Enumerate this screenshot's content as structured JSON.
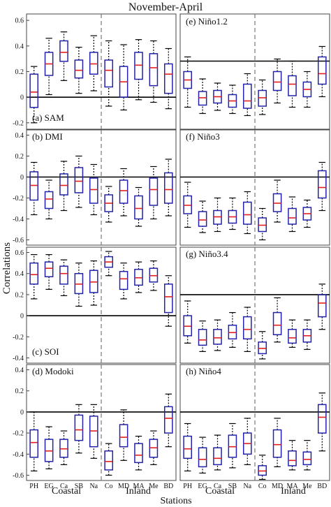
{
  "figure_title": "November-April",
  "ylabel": "Correlations",
  "xlabel": "Stations",
  "group_labels": [
    "Coastal",
    "Inland"
  ],
  "colors": {
    "box": "#2222aa",
    "median": "#e02020",
    "zero_line": "#000000",
    "divider": "#777777"
  },
  "chart_data": [
    {
      "type": "boxplot",
      "panel": "(a) SAM",
      "ylim": [
        -0.25,
        0.65
      ],
      "yticks": [
        -0.2,
        0,
        0.2,
        0.4,
        0.6
      ],
      "ytick_labels": [
        "-0.2",
        "0",
        "0.2",
        "0.4",
        "0.6"
      ],
      "categories": [
        "PH",
        "EG",
        "Ca",
        "SB",
        "Na",
        "Co",
        "MD",
        "MA",
        "Me",
        "BD"
      ],
      "boxes": [
        {
          "min": -0.2,
          "q1": -0.08,
          "median": 0.04,
          "q3": 0.18,
          "max": 0.24
        },
        {
          "min": 0.02,
          "q1": 0.17,
          "median": 0.26,
          "q3": 0.35,
          "max": 0.46
        },
        {
          "min": 0.13,
          "q1": 0.28,
          "median": 0.35,
          "q3": 0.44,
          "max": 0.51
        },
        {
          "min": 0.03,
          "q1": 0.15,
          "median": 0.21,
          "q3": 0.29,
          "max": 0.39
        },
        {
          "min": 0.05,
          "q1": 0.18,
          "median": 0.26,
          "q3": 0.35,
          "max": 0.48
        },
        {
          "min": -0.07,
          "q1": 0.08,
          "median": 0.21,
          "q3": 0.29,
          "max": 0.44
        },
        {
          "min": -0.1,
          "q1": 0.0,
          "median": 0.12,
          "q3": 0.24,
          "max": 0.41
        },
        {
          "min": -0.02,
          "q1": 0.14,
          "median": 0.25,
          "q3": 0.35,
          "max": 0.45
        },
        {
          "min": -0.04,
          "q1": 0.09,
          "median": 0.23,
          "q3": 0.34,
          "max": 0.44
        },
        {
          "min": -0.09,
          "q1": 0.03,
          "median": 0.18,
          "q3": 0.26,
          "max": 0.38
        }
      ]
    },
    {
      "type": "boxplot",
      "panel": "(e) Niño1.2",
      "ylim": [
        -0.65,
        0.45
      ],
      "yticks": [],
      "ytick_labels": [],
      "categories": [
        "PH",
        "EG",
        "Ca",
        "SB",
        "Na",
        "Co",
        "MD",
        "MA",
        "Me",
        "BD"
      ],
      "boxes": [
        {
          "min": -0.44,
          "q1": -0.26,
          "median": -0.18,
          "q3": -0.1,
          "max": 0.04
        },
        {
          "min": -0.5,
          "q1": -0.42,
          "median": -0.35,
          "q3": -0.29,
          "max": -0.17
        },
        {
          "min": -0.47,
          "q1": -0.4,
          "median": -0.34,
          "q3": -0.28,
          "max": -0.21
        },
        {
          "min": -0.5,
          "q1": -0.44,
          "median": -0.38,
          "q3": -0.32,
          "max": -0.23
        },
        {
          "min": -0.52,
          "q1": -0.45,
          "median": -0.38,
          "q3": -0.22,
          "max": -0.12
        },
        {
          "min": -0.51,
          "q1": -0.43,
          "median": -0.35,
          "q3": -0.28,
          "max": -0.18
        },
        {
          "min": -0.4,
          "q1": -0.28,
          "median": -0.2,
          "q3": -0.1,
          "max": 0.02
        },
        {
          "min": -0.44,
          "q1": -0.33,
          "median": -0.22,
          "q3": -0.14,
          "max": 0.0
        },
        {
          "min": -0.44,
          "q1": -0.34,
          "median": -0.27,
          "q3": -0.2,
          "max": -0.1
        },
        {
          "min": -0.34,
          "q1": -0.22,
          "median": -0.12,
          "q3": 0.04,
          "max": 0.14
        }
      ]
    },
    {
      "type": "boxplot",
      "panel": "(b) DMI",
      "ylim": [
        -0.65,
        0.45
      ],
      "yticks": [
        -0.6,
        -0.4,
        -0.2,
        0,
        0.2,
        0.4
      ],
      "ytick_labels": [
        "-0.6",
        "-0.4",
        "-0.2",
        "0",
        "0.2",
        "0.4"
      ],
      "categories": [
        "PH",
        "EG",
        "Ca",
        "SB",
        "Na",
        "Co",
        "MD",
        "MA",
        "Me",
        "BD"
      ],
      "boxes": [
        {
          "min": -0.36,
          "q1": -0.22,
          "median": -0.08,
          "q3": 0.05,
          "max": 0.14
        },
        {
          "min": -0.4,
          "q1": -0.3,
          "median": -0.21,
          "q3": -0.14,
          "max": -0.03
        },
        {
          "min": -0.32,
          "q1": -0.17,
          "median": -0.08,
          "q3": 0.03,
          "max": 0.15
        },
        {
          "min": -0.29,
          "q1": -0.15,
          "median": -0.04,
          "q3": 0.09,
          "max": 0.2
        },
        {
          "min": -0.36,
          "q1": -0.25,
          "median": -0.12,
          "q3": -0.01,
          "max": 0.12
        },
        {
          "min": -0.43,
          "q1": -0.33,
          "median": -0.25,
          "q3": -0.17,
          "max": -0.09
        },
        {
          "min": -0.37,
          "q1": -0.25,
          "median": -0.13,
          "q3": -0.03,
          "max": 0.08
        },
        {
          "min": -0.47,
          "q1": -0.4,
          "median": -0.3,
          "q3": -0.18,
          "max": -0.1
        },
        {
          "min": -0.4,
          "q1": -0.27,
          "median": -0.12,
          "q3": -0.01,
          "max": 0.1
        },
        {
          "min": -0.37,
          "q1": -0.25,
          "median": -0.12,
          "q3": 0.04,
          "max": 0.17
        }
      ]
    },
    {
      "type": "boxplot",
      "panel": "(f) Niño3",
      "ylim": [
        -0.65,
        0.45
      ],
      "yticks": [],
      "ytick_labels": [],
      "categories": [
        "PH",
        "EG",
        "Ca",
        "SB",
        "Na",
        "Co",
        "MD",
        "MA",
        "Me",
        "BD"
      ],
      "boxes": [
        {
          "min": -0.48,
          "q1": -0.35,
          "median": -0.27,
          "q3": -0.18,
          "max": -0.05
        },
        {
          "min": -0.53,
          "q1": -0.47,
          "median": -0.41,
          "q3": -0.33,
          "max": -0.23
        },
        {
          "min": -0.52,
          "q1": -0.45,
          "median": -0.38,
          "q3": -0.32,
          "max": -0.2
        },
        {
          "min": -0.5,
          "q1": -0.44,
          "median": -0.38,
          "q3": -0.32,
          "max": -0.2
        },
        {
          "min": -0.54,
          "q1": -0.45,
          "median": -0.36,
          "q3": -0.24,
          "max": -0.14
        },
        {
          "min": -0.6,
          "q1": -0.52,
          "median": -0.46,
          "q3": -0.39,
          "max": -0.3
        },
        {
          "min": -0.43,
          "q1": -0.33,
          "median": -0.25,
          "q3": -0.16,
          "max": -0.03
        },
        {
          "min": -0.52,
          "q1": -0.45,
          "median": -0.39,
          "q3": -0.3,
          "max": -0.19
        },
        {
          "min": -0.48,
          "q1": -0.41,
          "median": -0.35,
          "q3": -0.29,
          "max": -0.22
        },
        {
          "min": -0.32,
          "q1": -0.2,
          "median": -0.1,
          "q3": 0.06,
          "max": 0.14
        }
      ]
    },
    {
      "type": "boxplot",
      "panel": "(c) SOI",
      "ylim": [
        -0.45,
        0.65
      ],
      "yticks": [
        -0.4,
        -0.2,
        0,
        0.2,
        0.4,
        0.6
      ],
      "ytick_labels": [
        "-0.4",
        "-0.2",
        "0",
        "0.2",
        "0.4",
        "0.6"
      ],
      "categories": [
        "PH",
        "EG",
        "Ca",
        "SB",
        "Na",
        "Co",
        "MD",
        "MA",
        "Me",
        "BD"
      ],
      "boxes": [
        {
          "min": 0.16,
          "q1": 0.3,
          "median": 0.39,
          "q3": 0.5,
          "max": 0.58
        },
        {
          "min": 0.25,
          "q1": 0.37,
          "median": 0.45,
          "q3": 0.51,
          "max": 0.58
        },
        {
          "min": 0.19,
          "q1": 0.3,
          "median": 0.4,
          "q3": 0.47,
          "max": 0.53
        },
        {
          "min": 0.09,
          "q1": 0.21,
          "median": 0.3,
          "q3": 0.4,
          "max": 0.5
        },
        {
          "min": 0.1,
          "q1": 0.22,
          "median": 0.32,
          "q3": 0.43,
          "max": 0.52
        },
        {
          "min": 0.38,
          "q1": 0.46,
          "median": 0.51,
          "q3": 0.56,
          "max": 0.61
        },
        {
          "min": 0.16,
          "q1": 0.25,
          "median": 0.35,
          "q3": 0.42,
          "max": 0.5
        },
        {
          "min": 0.22,
          "q1": 0.29,
          "median": 0.36,
          "q3": 0.44,
          "max": 0.51
        },
        {
          "min": 0.24,
          "q1": 0.32,
          "median": 0.38,
          "q3": 0.45,
          "max": 0.52
        },
        {
          "min": -0.1,
          "q1": 0.03,
          "median": 0.18,
          "q3": 0.3,
          "max": 0.38
        }
      ]
    },
    {
      "type": "boxplot",
      "panel": "(g) Niño3.4",
      "ylim": [
        -0.65,
        0.45
      ],
      "yticks": [],
      "ytick_labels": [],
      "categories": [
        "PH",
        "EG",
        "Ca",
        "SB",
        "Na",
        "Co",
        "MD",
        "MA",
        "Me",
        "BD"
      ],
      "boxes": [
        {
          "min": -0.46,
          "q1": -0.39,
          "median": -0.3,
          "q3": -0.2,
          "max": -0.06
        },
        {
          "min": -0.54,
          "q1": -0.48,
          "median": -0.43,
          "q3": -0.33,
          "max": -0.25
        },
        {
          "min": -0.53,
          "q1": -0.47,
          "median": -0.41,
          "q3": -0.33,
          "max": -0.24
        },
        {
          "min": -0.5,
          "q1": -0.42,
          "median": -0.36,
          "q3": -0.29,
          "max": -0.17
        },
        {
          "min": -0.54,
          "q1": -0.42,
          "median": -0.33,
          "q3": -0.21,
          "max": -0.12
        },
        {
          "min": -0.61,
          "q1": -0.56,
          "median": -0.51,
          "q3": -0.45,
          "max": -0.35
        },
        {
          "min": -0.45,
          "q1": -0.38,
          "median": -0.29,
          "q3": -0.17,
          "max": -0.03
        },
        {
          "min": -0.5,
          "q1": -0.46,
          "median": -0.41,
          "q3": -0.33,
          "max": -0.24
        },
        {
          "min": -0.52,
          "q1": -0.45,
          "median": -0.39,
          "q3": -0.33,
          "max": -0.24
        },
        {
          "min": -0.33,
          "q1": -0.21,
          "median": -0.08,
          "q3": 0.0,
          "max": 0.1
        }
      ]
    },
    {
      "type": "boxplot",
      "panel": "(d) Modoki",
      "ylim": [
        -0.65,
        0.45
      ],
      "yticks": [
        -0.6,
        -0.4,
        -0.2,
        0,
        0.2,
        0.4
      ],
      "ytick_labels": [
        "-0.6",
        "-0.4",
        "-0.2",
        "0",
        "0.2",
        "0.4"
      ],
      "categories": [
        "PH",
        "EG",
        "Ca",
        "SB",
        "Na",
        "Co",
        "MD",
        "MA",
        "Me",
        "BD"
      ],
      "boxes": [
        {
          "min": -0.56,
          "q1": -0.43,
          "median": -0.29,
          "q3": -0.17,
          "max": 0.0
        },
        {
          "min": -0.54,
          "q1": -0.47,
          "median": -0.37,
          "q3": -0.26,
          "max": -0.14
        },
        {
          "min": -0.5,
          "q1": -0.43,
          "median": -0.35,
          "q3": -0.26,
          "max": -0.18
        },
        {
          "min": -0.39,
          "q1": -0.27,
          "median": -0.17,
          "q3": -0.03,
          "max": 0.07
        },
        {
          "min": -0.44,
          "q1": -0.33,
          "median": -0.18,
          "q3": -0.04,
          "max": 0.07
        },
        {
          "min": -0.6,
          "q1": -0.55,
          "median": -0.47,
          "q3": -0.37,
          "max": -0.3
        },
        {
          "min": -0.46,
          "q1": -0.33,
          "median": -0.24,
          "q3": -0.12,
          "max": 0.02
        },
        {
          "min": -0.55,
          "q1": -0.48,
          "median": -0.41,
          "q3": -0.3,
          "max": -0.23
        },
        {
          "min": -0.5,
          "q1": -0.43,
          "median": -0.34,
          "q3": -0.26,
          "max": -0.18
        },
        {
          "min": -0.33,
          "q1": -0.2,
          "median": -0.06,
          "q3": 0.05,
          "max": 0.17
        }
      ]
    },
    {
      "type": "boxplot",
      "panel": "(h) Niño4",
      "ylim": [
        -0.65,
        0.45
      ],
      "yticks": [],
      "ytick_labels": [],
      "categories": [
        "PH",
        "EG",
        "Ca",
        "SB",
        "Na",
        "Co",
        "MD",
        "MA",
        "Me",
        "BD"
      ],
      "boxes": [
        {
          "min": -0.56,
          "q1": -0.44,
          "median": -0.35,
          "q3": -0.23,
          "max": -0.11
        },
        {
          "min": -0.58,
          "q1": -0.52,
          "median": -0.45,
          "q3": -0.34,
          "max": -0.24
        },
        {
          "min": -0.55,
          "q1": -0.5,
          "median": -0.44,
          "q3": -0.34,
          "max": -0.22
        },
        {
          "min": -0.53,
          "q1": -0.43,
          "median": -0.33,
          "q3": -0.22,
          "max": -0.11
        },
        {
          "min": -0.5,
          "q1": -0.4,
          "median": -0.3,
          "q3": -0.2,
          "max": -0.06
        },
        {
          "min": -0.64,
          "q1": -0.6,
          "median": -0.56,
          "q3": -0.51,
          "max": -0.41
        },
        {
          "min": -0.52,
          "q1": -0.43,
          "median": -0.31,
          "q3": -0.17,
          "max": -0.06
        },
        {
          "min": -0.55,
          "q1": -0.51,
          "median": -0.46,
          "q3": -0.37,
          "max": -0.27
        },
        {
          "min": -0.55,
          "q1": -0.5,
          "median": -0.45,
          "q3": -0.38,
          "max": -0.27
        },
        {
          "min": -0.37,
          "q1": -0.2,
          "median": -0.05,
          "q3": 0.07,
          "max": 0.18
        }
      ]
    }
  ]
}
